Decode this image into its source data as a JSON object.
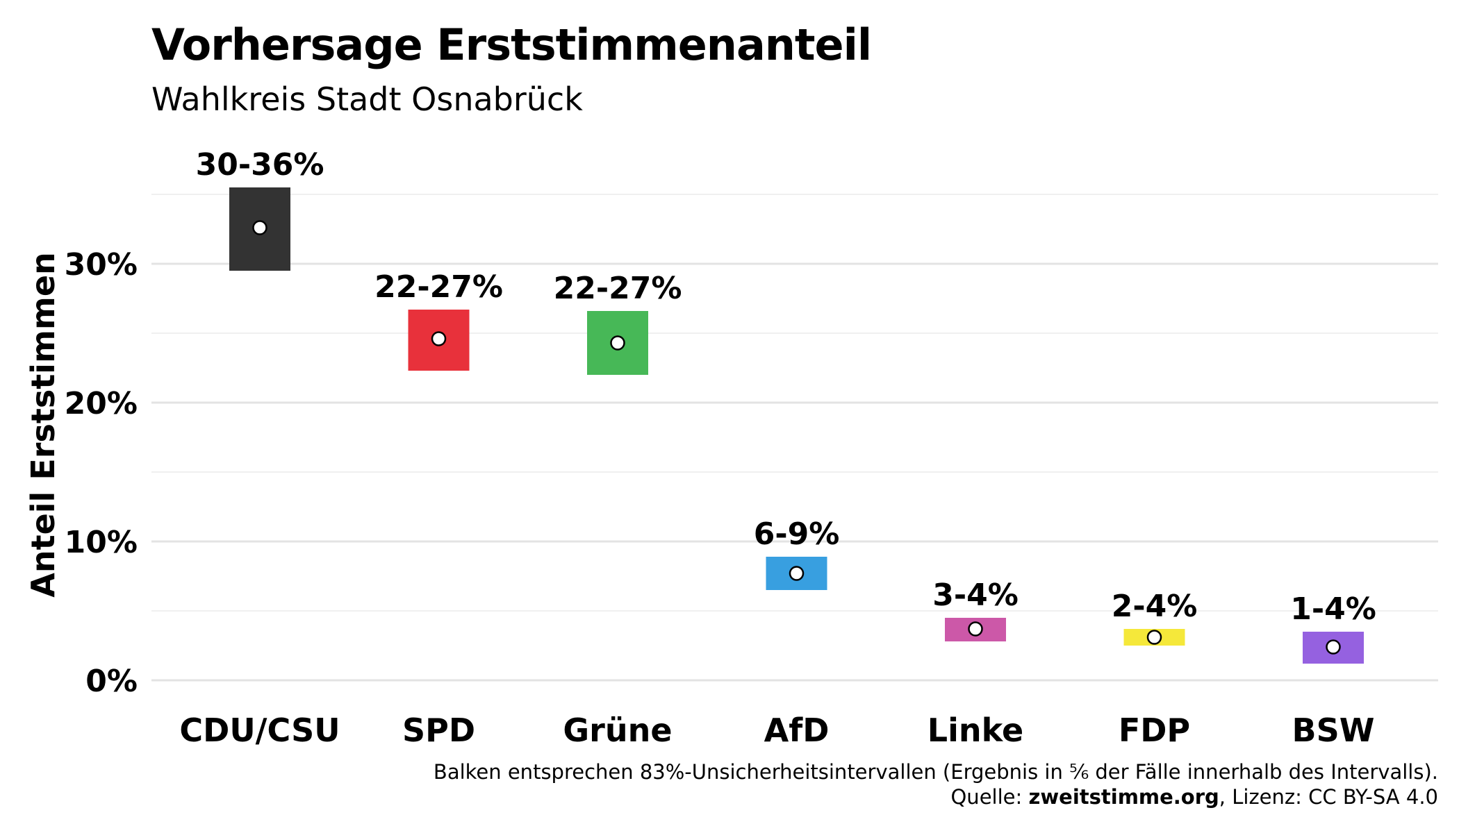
{
  "title": "Vorhersage Erststimmenanteil",
  "subtitle": "Wahlkreis Stadt Osnabrück",
  "caption": {
    "line1": "Balken entsprechen 83%-Unsicherheitsintervallen (Ergebnis in ⅚ der Fälle innerhalb des Intervalls).",
    "source_prefix": "Quelle: ",
    "source_name": "zweitstimme.org",
    "license": ", Lizenz: CC BY-SA 4.0"
  },
  "chart_data": {
    "type": "bar",
    "ylabel": "Anteil Erststimmen",
    "ylim": [
      0,
      36
    ],
    "y_ticks": [
      0,
      10,
      20,
      30
    ],
    "y_tick_labels": [
      "0%",
      "10%",
      "20%",
      "30%"
    ],
    "grid": true,
    "categories": [
      "CDU/CSU",
      "SPD",
      "Grüne",
      "AfD",
      "Linke",
      "FDP",
      "BSW"
    ],
    "colors": [
      "#333333",
      "#e8313b",
      "#47b857",
      "#389fe0",
      "#cc58a8",
      "#f5e83a",
      "#9561e0"
    ],
    "lower": [
      29.5,
      22.3,
      22.0,
      6.5,
      2.8,
      2.5,
      1.2
    ],
    "upper": [
      35.5,
      26.7,
      26.6,
      8.9,
      4.5,
      3.7,
      3.5
    ],
    "estimate": [
      32.6,
      24.6,
      24.3,
      7.7,
      3.7,
      3.1,
      2.4
    ],
    "labels": [
      "30-36%",
      "22-27%",
      "22-27%",
      "6-9%",
      "3-4%",
      "2-4%",
      "1-4%"
    ]
  }
}
